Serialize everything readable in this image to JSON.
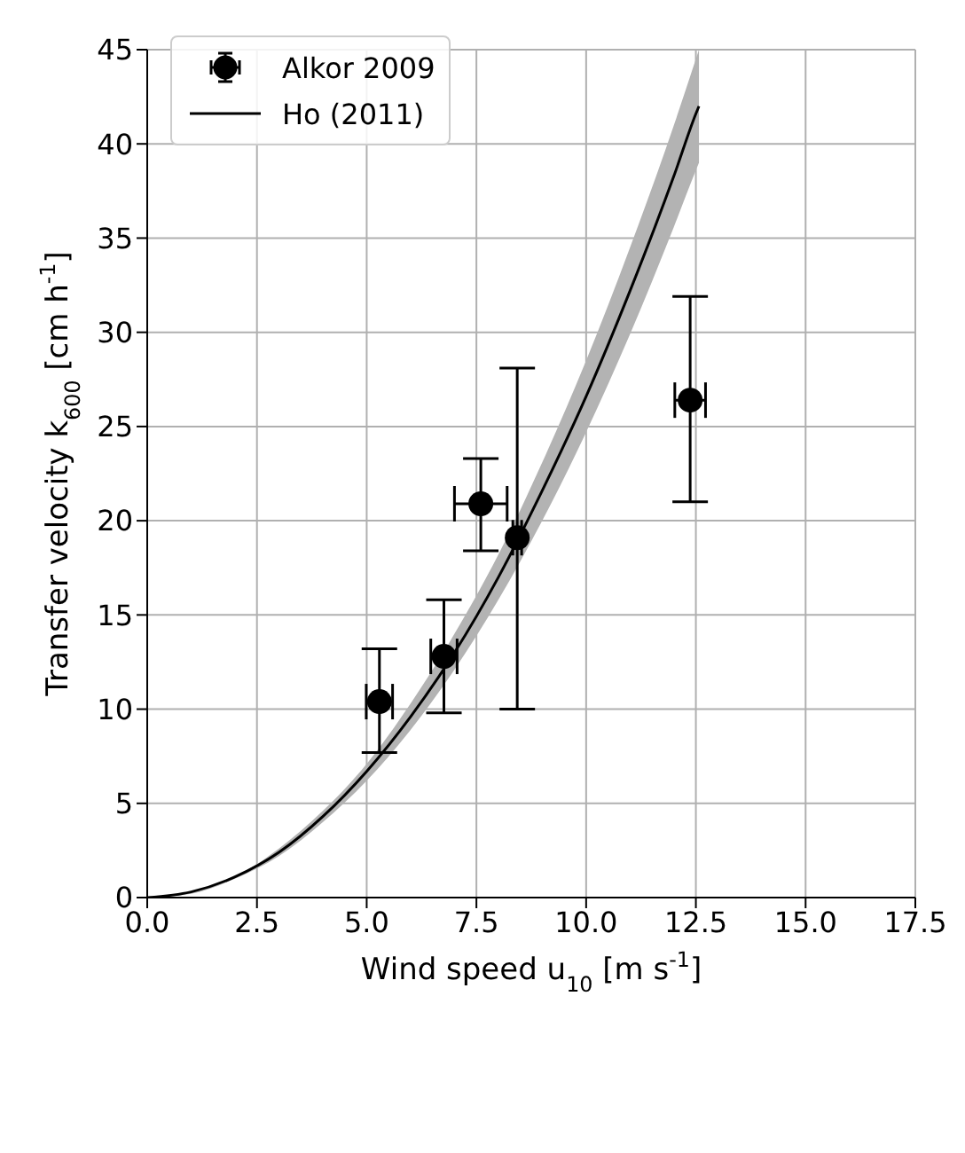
{
  "chart_data": {
    "type": "scatter",
    "xlabel": "Wind speed u$_{10}$ [m s$^{-1}$]",
    "ylabel": "Transfer velocity k$_{600}$ [cm h$^{-1}$]",
    "xlim": [
      0,
      17.5
    ],
    "xticks": [
      {
        "value": 0,
        "label": "0.0"
      },
      {
        "value": 2.5,
        "label": "2.5"
      },
      {
        "value": 5,
        "label": "5.0"
      },
      {
        "value": 7.5,
        "label": "7.5"
      },
      {
        "value": 10,
        "label": "10.0"
      },
      {
        "value": 12.5,
        "label": "12.5"
      },
      {
        "value": 15,
        "label": "15.0"
      },
      {
        "value": 17.5,
        "label": "17.5"
      }
    ],
    "ylim": [
      0,
      45
    ],
    "yticks": [
      0,
      5,
      10,
      15,
      20,
      25,
      30,
      35,
      40,
      45
    ],
    "grid": true,
    "legend": "top left",
    "series": [
      {
        "name": "Ho (2011)",
        "type": "line",
        "color": "#000000",
        "x": [
          0,
          1,
          2,
          3,
          4,
          5,
          6,
          7,
          8,
          9,
          10,
          11,
          12,
          12.5,
          12.57
        ],
        "values": [
          0,
          0.3,
          1.1,
          2.4,
          4.3,
          6.7,
          9.6,
          13,
          17,
          21.6,
          26.6,
          32.2,
          38.3,
          41.6,
          42
        ],
        "lower": [
          0,
          0.2,
          1,
          2.2,
          4,
          6.2,
          8.9,
          12.1,
          15.8,
          20,
          24.7,
          29.9,
          35.6,
          38.6,
          39
        ],
        "upper": [
          0,
          0.3,
          1.1,
          2.6,
          4.6,
          7.1,
          10.3,
          14,
          18.2,
          23.1,
          28.5,
          34.5,
          41,
          44.5,
          45
        ]
      },
      {
        "name": "Alkor 2009",
        "color": "#000000",
        "marker": "circle",
        "x": [
          5.29,
          6.76,
          7.6,
          8.43,
          12.37
        ],
        "values": [
          10.4,
          12.8,
          20.9,
          19.1,
          26.4
        ],
        "errors": [
          [
            7.7,
            13.2
          ],
          [
            9.8,
            15.8
          ],
          [
            18.4,
            23.3
          ],
          [
            10,
            28.1
          ],
          [
            21,
            31.9
          ]
        ],
        "xerrors": [
          0.3,
          0.3,
          0.6,
          0.1,
          0.35
        ]
      }
    ]
  }
}
